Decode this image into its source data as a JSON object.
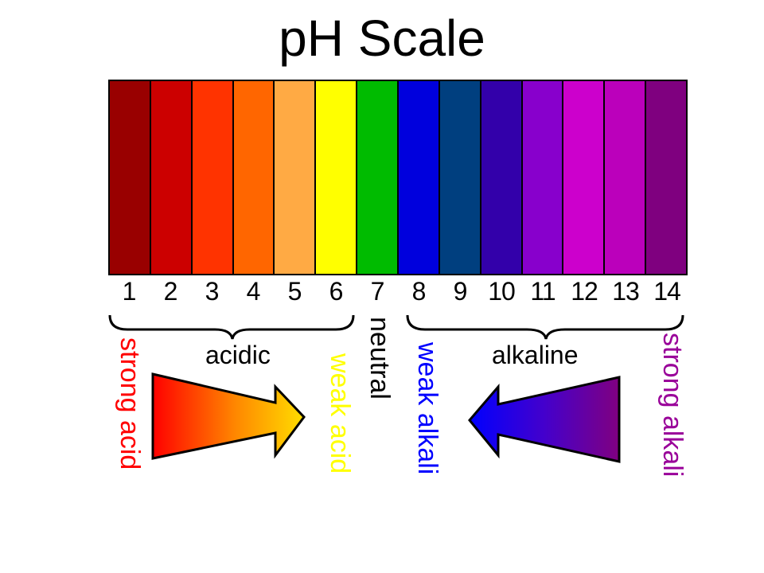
{
  "title": "pH Scale",
  "scale": {
    "levels": [
      {
        "value": "1",
        "color": "#990000"
      },
      {
        "value": "2",
        "color": "#CC0000"
      },
      {
        "value": "3",
        "color": "#FF3300"
      },
      {
        "value": "4",
        "color": "#FF6600"
      },
      {
        "value": "5",
        "color": "#FFAA44"
      },
      {
        "value": "6",
        "color": "#FFFF00"
      },
      {
        "value": "7",
        "color": "#00BB00"
      },
      {
        "value": "8",
        "color": "#0000DD"
      },
      {
        "value": "9",
        "color": "#003F7F"
      },
      {
        "value": "10",
        "color": "#3300AA"
      },
      {
        "value": "11",
        "color": "#8800CC"
      },
      {
        "value": "12",
        "color": "#CC00CC"
      },
      {
        "value": "13",
        "color": "#BB00BB"
      },
      {
        "value": "14",
        "color": "#7F007F"
      }
    ]
  },
  "labels": {
    "acidic": "acidic",
    "alkaline": "alkaline",
    "neutral": "neutral",
    "strong_acid": "strong acid",
    "weak_acid": "weak acid",
    "weak_alkali": "weak alkali",
    "strong_alkali": "strong alkali"
  },
  "colors": {
    "strong_acid": "#FF0000",
    "weak_acid": "#FFFF00",
    "weak_alkali": "#0000FF",
    "strong_alkali": "#990099",
    "neutral": "#000000"
  }
}
